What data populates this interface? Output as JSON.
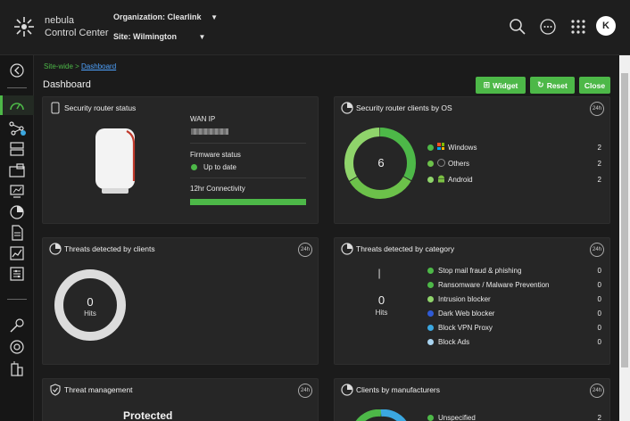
{
  "header": {
    "brand_line1": "nebula",
    "brand_line2": "Control Center",
    "org_label": "Organization:",
    "org_value": "Clearlink",
    "site_label": "Site:",
    "site_value": "Wilmington",
    "avatar_letter": "K"
  },
  "breadcrumb": {
    "parent": "Site-wide >",
    "current": "Dashboard"
  },
  "page_title": "Dashboard",
  "toolbar": {
    "widget_label": "Widget",
    "reset_label": "Reset",
    "close_label": "Close"
  },
  "colors": {
    "accent": "#4db848",
    "light_green": "#8fd46b",
    "dark_blue": "#2f5bd6",
    "sky_blue": "#3ba7e0",
    "pale_blue": "#a9d4f0"
  },
  "router_status": {
    "title": "Security router status",
    "wan_ip_label": "WAN IP",
    "firmware_label": "Firmware status",
    "firmware_value": "Up to date",
    "connectivity_label": "12hr Connectivity",
    "connectivity_fraction": 1.0
  },
  "clients_by_os": {
    "title": "Security router clients by OS",
    "badge": "24h",
    "total": "6",
    "items": [
      {
        "label": "Windows",
        "count": "2",
        "icon": "windows-icon"
      },
      {
        "label": "Others",
        "count": "2",
        "icon": "others-icon"
      },
      {
        "label": "Android",
        "count": "2",
        "icon": "android-icon"
      }
    ]
  },
  "threats_clients": {
    "title": "Threats detected by clients",
    "badge": "24h",
    "value": "0",
    "unit": "Hits"
  },
  "threats_category": {
    "title": "Threats detected by category",
    "badge": "24h",
    "bar_label": "|",
    "value": "0",
    "unit": "Hits",
    "items": [
      {
        "label": "Stop mail fraud & phishing",
        "count": "0",
        "color": "#4db848"
      },
      {
        "label": "Ransomware / Malware Prevention",
        "count": "0",
        "color": "#4db848"
      },
      {
        "label": "Intrusion blocker",
        "count": "0",
        "color": "#8fd46b"
      },
      {
        "label": "Dark Web blocker",
        "count": "0",
        "color": "#2f5bd6"
      },
      {
        "label": "Block VPN Proxy",
        "count": "0",
        "color": "#3ba7e0"
      },
      {
        "label": "Block Ads",
        "count": "0",
        "color": "#a9d4f0"
      }
    ]
  },
  "threat_management": {
    "title": "Threat management",
    "badge": "24h",
    "status": "Protected"
  },
  "clients_by_manufacturer": {
    "title": "Clients by manufacturers",
    "badge": "24h",
    "items": [
      {
        "label": "Unspecified",
        "count": "2"
      }
    ]
  }
}
